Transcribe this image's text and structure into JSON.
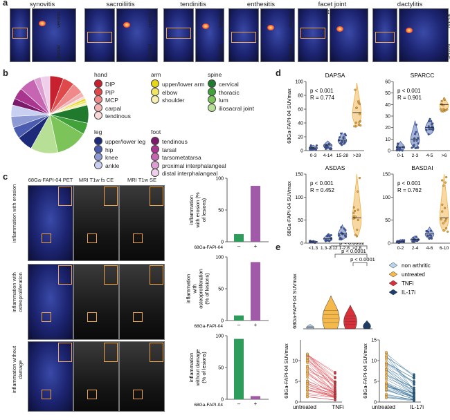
{
  "panel_a": {
    "letter": "a",
    "titles": [
      "synovitis",
      "sacroiliitis",
      "tendinitis",
      "enthesitis",
      "facet joint arthritis",
      "dactylitis"
    ],
    "orient_labels": [
      [
        "ventral",
        "dorsal"
      ],
      [
        "cranial",
        "caudal"
      ],
      [
        "lateral",
        "medial"
      ],
      [
        "dorsal",
        "ventral"
      ],
      [
        "dorsal",
        "ventral"
      ]
    ]
  },
  "panel_b": {
    "letter": "b",
    "groups": {
      "hand": {
        "title": "hand",
        "items": [
          "DIP",
          "PIP",
          "MCP",
          "carpal",
          "tendinous"
        ],
        "colors": [
          "#c7202e",
          "#e0494a",
          "#f08a8a",
          "#f3b3b3",
          "#f9d9d9"
        ]
      },
      "arm": {
        "title": "arm",
        "items": [
          "upper/lower arm",
          "elbow",
          "shoulder"
        ],
        "colors": [
          "#e6d61a",
          "#eee466",
          "#f5f0b4"
        ]
      },
      "spine": {
        "title": "spine",
        "items": [
          "cervical",
          "thoracic",
          "lum",
          "iliosacral joint"
        ],
        "colors": [
          "#1f7a2e",
          "#41a23a",
          "#7cc45a",
          "#b7df95"
        ]
      },
      "leg": {
        "title": "leg",
        "items": [
          "upper/lower leg",
          "hip",
          "knee",
          "ankle"
        ],
        "colors": [
          "#1d2a7a",
          "#4a5bb0",
          "#8d9ad4",
          "#c8cff0"
        ]
      },
      "foot": {
        "title": "foot",
        "items": [
          "tendinous",
          "tarsal",
          "tarsometatarsa",
          "proximal interphalangeal",
          "distal interphalangeal"
        ],
        "colors": [
          "#7b1a6b",
          "#a9358f",
          "#c666b3",
          "#dc9dd0",
          "#efcfe9"
        ]
      }
    },
    "pie_fractions": [
      0.06,
      0.05,
      0.05,
      0.02,
      0.01,
      0.01,
      0.01,
      0.01,
      0.08,
      0.05,
      0.14,
      0.12,
      0.07,
      0.05,
      0.05,
      0.05,
      0.03,
      0.05,
      0.07,
      0.03,
      0.04
    ]
  },
  "panel_c": {
    "letter": "c",
    "col_titles": [
      "68Ga-FAPI-04 PET",
      "MRI T1w fs CE",
      "MRI T1w SE"
    ],
    "row_labels": [
      "inflammation with erosion",
      "inflammation with osteoproliferation",
      "inflammation without damage"
    ],
    "bar_ylabels": [
      "inflammation with erosion (% of lesions)",
      "inflammation with osteoproliferation (% of lesions)",
      "inflammation without damage (% of lesions)"
    ],
    "bar_xlabel": "68Ga-FAPI-04",
    "x_categories": [
      "–",
      "+"
    ],
    "yticks": [
      "0",
      "50",
      "100"
    ],
    "bars": [
      {
        "neg": 12,
        "pos": 88
      },
      {
        "neg": 8,
        "pos": 92
      },
      {
        "neg": 95,
        "pos": 5
      }
    ],
    "colors": {
      "neg": "#2e9c5a",
      "pos": "#a05aa8"
    }
  },
  "chart_data": [
    {
      "type": "scatter",
      "title": "DAPSA",
      "categories": [
        "0-3",
        "4-14",
        "15-28",
        ">28"
      ],
      "annotation": [
        "p < 0.001",
        "R = 0.774"
      ],
      "ylabel": "68Ga-FAPI-04 SUVmax",
      "ylim": [
        0,
        100
      ],
      "yticks": [
        0,
        20,
        40,
        60,
        80,
        100
      ],
      "medians": [
        4,
        8,
        15,
        55
      ],
      "ranges": [
        [
          1,
          8
        ],
        [
          2,
          14
        ],
        [
          8,
          26
        ],
        [
          35,
          98
        ]
      ],
      "color": "#3a56a8",
      "last_color": "#f0a830"
    },
    {
      "type": "scatter",
      "title": "SPARCC",
      "categories": [
        "0-1",
        "2-3",
        "4-5",
        ">6"
      ],
      "annotation": [
        "p < 0.001",
        "R = 0.901"
      ],
      "ylim": [
        0,
        60
      ],
      "yticks": [
        0,
        10,
        20,
        30,
        40,
        50,
        60
      ],
      "medians": [
        3,
        10,
        20,
        40
      ],
      "ranges": [
        [
          0,
          8
        ],
        [
          2,
          26
        ],
        [
          14,
          28
        ],
        [
          34,
          46
        ]
      ],
      "color": "#3a56a8",
      "last_color": "#f0a830"
    },
    {
      "type": "scatter",
      "title": "ASDAS",
      "categories": [
        "<1.3",
        "1.3-2.1",
        "2.1-2.8",
        ">2.8"
      ],
      "annotation": [
        "p < 0.001",
        "R = 0.452"
      ],
      "ylabel": "68Ga-FAPI-04 SUVmax",
      "ylim": [
        0,
        150
      ],
      "yticks": [
        0,
        50,
        100,
        150
      ],
      "medians": [
        3,
        10,
        20,
        55
      ],
      "ranges": [
        [
          1,
          6
        ],
        [
          4,
          20
        ],
        [
          8,
          40
        ],
        [
          15,
          150
        ]
      ],
      "color": "#3a56a8",
      "last_color": "#f0a830"
    },
    {
      "type": "scatter",
      "title": "BASDAI",
      "categories": [
        "0-2",
        "2-4",
        "4-6",
        "6-10"
      ],
      "annotation": [
        "p < 0.001",
        "R = 0.762"
      ],
      "ylim": [
        0,
        150
      ],
      "yticks": [
        0,
        50,
        100,
        150
      ],
      "medians": [
        3,
        8,
        20,
        55
      ],
      "ranges": [
        [
          1,
          8
        ],
        [
          3,
          16
        ],
        [
          10,
          35
        ],
        [
          25,
          150
        ]
      ],
      "color": "#3a56a8",
      "last_color": "#f0a830"
    },
    {
      "type": "violin",
      "ylabel": "68Ga-FAPI-04 SUVmax",
      "series": [
        {
          "name": "non arthritic",
          "color": "#b8d4ec",
          "median": 0.1
        },
        {
          "name": "untreated",
          "color": "#f5b84a",
          "median": 5
        },
        {
          "name": "TNFi",
          "color": "#d8303a",
          "median": 3
        },
        {
          "name": "IL-17i",
          "color": "#1d3f6b",
          "median": 0.3
        }
      ],
      "pvalues": [
        "p < 0.0001",
        "p < 0.0001",
        "p < 0.0001"
      ]
    },
    {
      "type": "line",
      "ylabel": "68Ga-FAPI-04 SUVmax",
      "categories": [
        "untreated",
        "TNFi"
      ],
      "ylim": [
        0,
        15
      ],
      "yticks": [
        0,
        5,
        10
      ],
      "line_color": "#d8303a",
      "point_color": "#f5b84a"
    },
    {
      "type": "line",
      "ylabel": "68Ga-FAPI-04 SUVmax",
      "categories": [
        "untreated",
        "IL-17i"
      ],
      "ylim": [
        0,
        15
      ],
      "yticks": [
        0,
        5,
        10,
        15
      ],
      "line_color": "#1d5f8f",
      "point_color": "#f5b84a"
    }
  ],
  "panel_d": {
    "letter": "d"
  },
  "panel_e": {
    "letter": "e"
  }
}
